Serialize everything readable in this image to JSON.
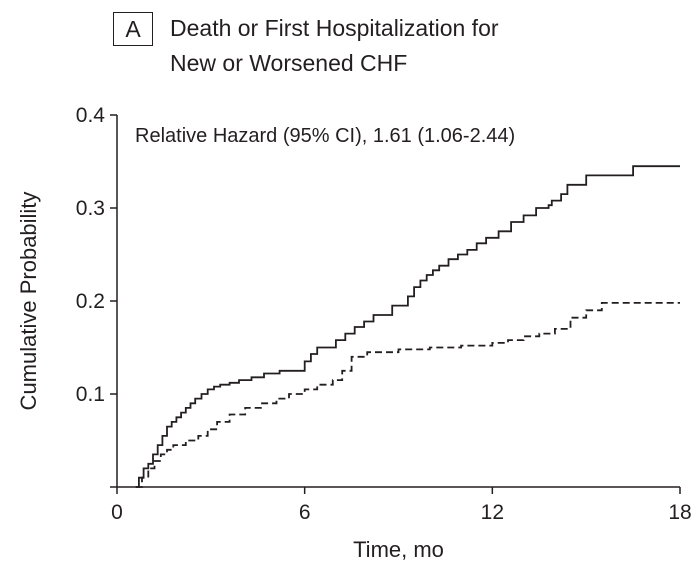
{
  "panel_label": "A",
  "title_lines": [
    "Death or First Hospitalization for",
    "New or Worsened CHF"
  ],
  "chart_data": {
    "type": "line",
    "title": "Death or First Hospitalization for New or Worsened CHF",
    "xlabel": "Time, mo",
    "ylabel": "Cumulative Probability",
    "xlim": [
      0,
      18
    ],
    "ylim": [
      0,
      0.4
    ],
    "xticks": [
      0,
      6,
      12,
      18
    ],
    "xtick_labels": [
      "0",
      "6",
      "12",
      "18"
    ],
    "yticks": [
      0.1,
      0.2,
      0.3,
      0.4
    ],
    "ytick_labels": [
      "0.1",
      "0.2",
      "0.3",
      "0.4"
    ],
    "grid": false,
    "annotation": "Relative Hazard (95% CI), 1.61 (1.06-2.44)",
    "series": [
      {
        "style": "solid",
        "color": "#231f20",
        "x": [
          0.6,
          0.7,
          0.85,
          1.0,
          1.15,
          1.3,
          1.45,
          1.6,
          1.75,
          1.9,
          2.05,
          2.2,
          2.35,
          2.5,
          2.7,
          2.9,
          3.1,
          3.3,
          3.6,
          3.9,
          4.3,
          4.7,
          5.2,
          5.8,
          6.0,
          6.2,
          6.4,
          7.0,
          7.3,
          7.6,
          7.9,
          8.2,
          8.5,
          8.8,
          9.3,
          9.5,
          9.7,
          9.9,
          10.1,
          10.3,
          10.6,
          10.9,
          11.2,
          11.5,
          11.8,
          12.2,
          12.6,
          13.0,
          13.4,
          13.8,
          13.9,
          14.2,
          14.4,
          15.0,
          16.5,
          18.0
        ],
        "y": [
          0.0,
          0.01,
          0.02,
          0.025,
          0.035,
          0.045,
          0.055,
          0.065,
          0.07,
          0.075,
          0.08,
          0.085,
          0.09,
          0.095,
          0.1,
          0.105,
          0.108,
          0.11,
          0.112,
          0.115,
          0.118,
          0.122,
          0.125,
          0.125,
          0.135,
          0.143,
          0.15,
          0.158,
          0.165,
          0.172,
          0.178,
          0.185,
          0.185,
          0.195,
          0.205,
          0.215,
          0.222,
          0.228,
          0.233,
          0.238,
          0.245,
          0.25,
          0.255,
          0.262,
          0.268,
          0.275,
          0.285,
          0.292,
          0.3,
          0.303,
          0.308,
          0.315,
          0.325,
          0.335,
          0.345,
          0.345
        ]
      },
      {
        "style": "dashed",
        "color": "#231f20",
        "x": [
          0.6,
          0.8,
          1.0,
          1.2,
          1.4,
          1.6,
          1.8,
          2.2,
          2.6,
          2.9,
          3.2,
          3.6,
          4.1,
          4.6,
          5.1,
          5.5,
          6.0,
          6.4,
          6.9,
          7.2,
          7.5,
          8.0,
          9.0,
          10.0,
          11.0,
          12.0,
          12.5,
          13.0,
          13.5,
          14.0,
          14.5,
          15.0,
          15.5,
          18.0
        ],
        "y": [
          0.0,
          0.01,
          0.02,
          0.028,
          0.035,
          0.04,
          0.045,
          0.05,
          0.055,
          0.062,
          0.07,
          0.078,
          0.085,
          0.09,
          0.095,
          0.1,
          0.105,
          0.11,
          0.115,
          0.125,
          0.14,
          0.145,
          0.148,
          0.15,
          0.152,
          0.155,
          0.158,
          0.162,
          0.165,
          0.17,
          0.182,
          0.19,
          0.198,
          0.198
        ]
      }
    ]
  }
}
